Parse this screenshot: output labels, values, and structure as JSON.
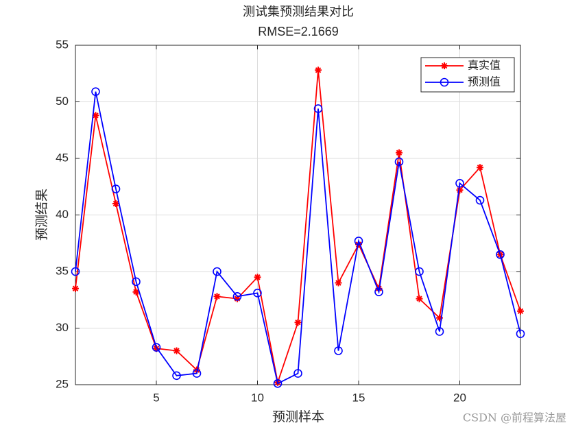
{
  "chart_data": {
    "type": "line",
    "title": "测试集预测结果对比",
    "subtitle": "RMSE=2.1669",
    "x_label": "预测样本",
    "y_label": "预测结果",
    "x": [
      1,
      2,
      3,
      4,
      5,
      6,
      7,
      8,
      9,
      10,
      11,
      12,
      13,
      14,
      15,
      16,
      17,
      18,
      19,
      20,
      21,
      22,
      23
    ],
    "series": [
      {
        "name": "真实值",
        "color": "#ff0000",
        "marker": "asterisk",
        "values": [
          33.5,
          48.8,
          41.0,
          33.2,
          28.2,
          28.0,
          26.3,
          32.8,
          32.6,
          34.5,
          25.2,
          30.5,
          52.8,
          34.0,
          37.4,
          33.5,
          45.5,
          32.6,
          30.9,
          42.2,
          44.2,
          36.5,
          31.5
        ]
      },
      {
        "name": "预测值",
        "color": "#0000ff",
        "marker": "circle",
        "values": [
          35.0,
          50.9,
          42.3,
          34.1,
          28.3,
          25.8,
          26.0,
          35.0,
          32.8,
          33.1,
          25.1,
          26.0,
          49.4,
          28.0,
          37.7,
          33.2,
          44.7,
          35.0,
          29.7,
          42.8,
          41.3,
          36.5,
          29.5
        ]
      }
    ],
    "xlim": [
      1,
      23
    ],
    "xticks": [
      5,
      10,
      15,
      20
    ],
    "ylim": [
      25,
      55
    ],
    "yticks": [
      25,
      30,
      35,
      40,
      45,
      50,
      55
    ],
    "grid": true,
    "legend_position": "northeast",
    "watermark": "CSDN @前程算法屋"
  }
}
